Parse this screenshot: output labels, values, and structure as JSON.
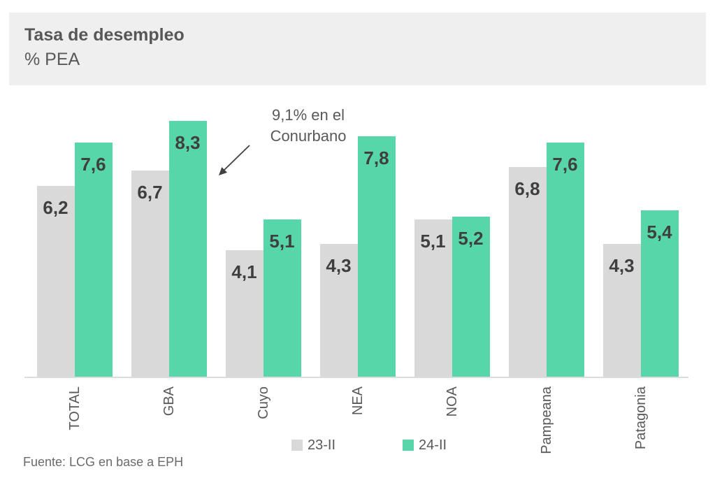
{
  "header": {
    "title": "Tasa de desempleo",
    "subtitle": "% PEA"
  },
  "annotation": {
    "line1": "9,1% en el",
    "line2": "Conurbano"
  },
  "footer": {
    "source": "Fuente: LCG en base a EPH"
  },
  "colors": {
    "series_23": "#d9d9d9",
    "series_24": "#57d6aa",
    "header_bg": "#f0efef",
    "axis_line": "#dcdcdc",
    "label_text": "#3f3f3f",
    "body_text": "#595959"
  },
  "chart_data": {
    "type": "bar",
    "title": "Tasa de desempleo",
    "subtitle": "% PEA",
    "categories": [
      "TOTAL",
      "GBA",
      "Cuyo",
      "NEA",
      "NOA",
      "Pampeana",
      "Patagonia"
    ],
    "series": [
      {
        "name": "23-II",
        "color": "#d9d9d9",
        "values": [
          6.2,
          6.7,
          4.1,
          4.3,
          5.1,
          6.8,
          4.3
        ]
      },
      {
        "name": "24-II",
        "color": "#57d6aa",
        "values": [
          7.6,
          8.3,
          5.1,
          7.8,
          5.2,
          7.6,
          5.4
        ]
      }
    ],
    "value_labels": [
      [
        "6,2",
        "6,7",
        "4,1",
        "4,3",
        "5,1",
        "6,8",
        "4,3"
      ],
      [
        "7,6",
        "8,3",
        "5,1",
        "7,8",
        "5,2",
        "7,6",
        "5,4"
      ]
    ],
    "annotation": "9,1% en el Conurbano",
    "xlabel": "",
    "ylabel": "% PEA",
    "ylim": [
      0,
      9
    ],
    "grid": false,
    "y_axis_visible": false,
    "legend_position": "bottom",
    "source": "Fuente: LCG en base a EPH"
  }
}
